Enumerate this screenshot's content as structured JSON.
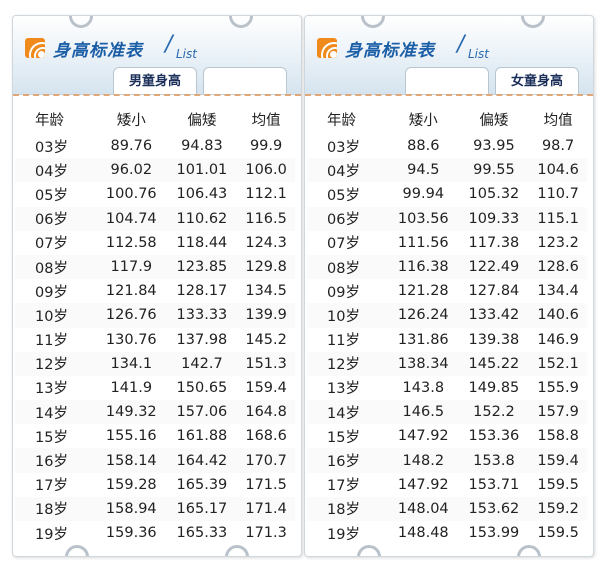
{
  "title": "身高标准表",
  "subtitle": "List",
  "tabs": [
    "男童身高",
    "女童身高"
  ],
  "columns": [
    "年龄",
    "矮小",
    "偏矮",
    "均值"
  ],
  "boys": [
    [
      "03岁",
      "89.76",
      "94.83",
      "99.9"
    ],
    [
      "04岁",
      "96.02",
      "101.01",
      "106.0"
    ],
    [
      "05岁",
      "100.76",
      "106.43",
      "112.1"
    ],
    [
      "06岁",
      "104.74",
      "110.62",
      "116.5"
    ],
    [
      "07岁",
      "112.58",
      "118.44",
      "124.3"
    ],
    [
      "08岁",
      "117.9",
      "123.85",
      "129.8"
    ],
    [
      "09岁",
      "121.84",
      "128.17",
      "134.5"
    ],
    [
      "10岁",
      "126.76",
      "133.33",
      "139.9"
    ],
    [
      "11岁",
      "130.76",
      "137.98",
      "145.2"
    ],
    [
      "12岁",
      "134.1",
      "142.7",
      "151.3"
    ],
    [
      "13岁",
      "141.9",
      "150.65",
      "159.4"
    ],
    [
      "14岁",
      "149.32",
      "157.06",
      "164.8"
    ],
    [
      "15岁",
      "155.16",
      "161.88",
      "168.6"
    ],
    [
      "16岁",
      "158.14",
      "164.42",
      "170.7"
    ],
    [
      "17岁",
      "159.28",
      "165.39",
      "171.5"
    ],
    [
      "18岁",
      "158.94",
      "165.17",
      "171.4"
    ],
    [
      "19岁",
      "159.36",
      "165.33",
      "171.3"
    ]
  ],
  "girls": [
    [
      "03岁",
      "88.6",
      "93.95",
      "98.7"
    ],
    [
      "04岁",
      "94.5",
      "99.55",
      "104.6"
    ],
    [
      "05岁",
      "99.94",
      "105.32",
      "110.7"
    ],
    [
      "06岁",
      "103.56",
      "109.33",
      "115.1"
    ],
    [
      "07岁",
      "111.56",
      "117.38",
      "123.2"
    ],
    [
      "08岁",
      "116.38",
      "122.49",
      "128.6"
    ],
    [
      "09岁",
      "121.28",
      "127.84",
      "134.4"
    ],
    [
      "10岁",
      "126.24",
      "133.42",
      "140.6"
    ],
    [
      "11岁",
      "131.86",
      "139.38",
      "146.9"
    ],
    [
      "12岁",
      "138.34",
      "145.22",
      "152.1"
    ],
    [
      "13岁",
      "143.8",
      "149.85",
      "155.9"
    ],
    [
      "14岁",
      "146.5",
      "152.2",
      "157.9"
    ],
    [
      "15岁",
      "147.92",
      "153.36",
      "158.8"
    ],
    [
      "16岁",
      "148.2",
      "153.8",
      "159.4"
    ],
    [
      "17岁",
      "147.92",
      "153.71",
      "159.5"
    ],
    [
      "18岁",
      "148.04",
      "153.62",
      "159.2"
    ],
    [
      "19岁",
      "148.48",
      "153.99",
      "159.5"
    ]
  ],
  "colors": {
    "accent": "#1d5fa7",
    "logo": "#f08a1c",
    "dash": "#e0a878"
  },
  "icons": {
    "logo": "rss-style-logo-icon",
    "binder": "binder-ring-icon"
  }
}
